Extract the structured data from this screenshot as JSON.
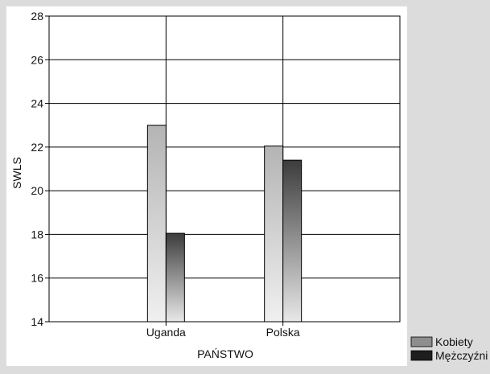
{
  "chart_data": {
    "type": "bar",
    "categories": [
      "Uganda",
      "Polska"
    ],
    "series": [
      {
        "name": "Kobiety",
        "values": [
          23.0,
          22.05
        ],
        "color": "#8e8e8e"
      },
      {
        "name": "Mężczyźni",
        "values": [
          18.05,
          21.4
        ],
        "color": "#1e1e1e"
      }
    ],
    "xlabel": "PAŃSTWO",
    "ylabel": "SWLS",
    "ylim": [
      14,
      28
    ],
    "yticks": [
      "14",
      "16",
      "18",
      "20",
      "22",
      "24",
      "26",
      "28"
    ],
    "grid": true,
    "legend_position": "bottom-right"
  }
}
